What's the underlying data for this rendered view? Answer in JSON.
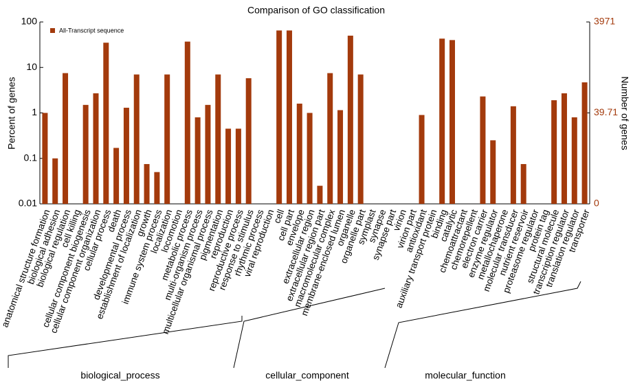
{
  "chart_data": {
    "type": "bar",
    "title": "Comparison of GO classification",
    "ylabel": "Percent of genes",
    "y2label": "Number of genes",
    "log_scale": true,
    "legend_position": "upper left",
    "series": [
      {
        "name": "All-Transcript sequence",
        "color": "#a33a0c",
        "values": [
          1.0,
          0.1,
          7.5,
          null,
          1.5,
          2.7,
          35,
          0.17,
          1.3,
          7,
          0.075,
          0.05,
          7,
          null,
          37,
          0.8,
          1.5,
          7,
          0.45,
          0.45,
          5.8,
          null,
          null,
          65,
          65,
          1.6,
          1.0,
          0.025,
          7.5,
          1.15,
          50,
          7,
          null,
          null,
          null,
          null,
          null,
          0.9,
          null,
          43,
          40,
          null,
          null,
          2.3,
          0.25,
          null,
          1.4,
          0.075,
          null,
          null,
          1.9,
          2.7,
          0.8,
          4.7
        ]
      }
    ],
    "categories": [
      "anatomical structure formation",
      "biological adhesion",
      "biological regulation",
      "cell killing",
      "cellular component biogenesis",
      "cellular component organization",
      "cellular process",
      "death",
      "developmental process",
      "establishment of localization",
      "growth",
      "immune system process",
      "localization",
      "locomotion",
      "metabolic process",
      "multi-organism process",
      "multicellular organismal process",
      "pigmentation",
      "reproduction",
      "reproductive process",
      "response to stimulus",
      "rhythmic process",
      "viral reproduction",
      "cell",
      "cell part",
      "envelope",
      "extracellular region",
      "extracellular region part",
      "macromolecular complex",
      "membrane-enclosed lumen",
      "organelle",
      "organelle part",
      "symplast",
      "synapse",
      "synapse part",
      "virion",
      "virion part",
      "antioxidant",
      "auxiliary transport protein",
      "binding",
      "catalytic",
      "chemoattractant",
      "chemorepellent",
      "electron carrier",
      "enzyme regulator",
      "metallochaperone",
      "molecular transducer",
      "nutrient reservoir",
      "proteasome regulator",
      "protein tag",
      "structural molecule",
      "transcription regulator",
      "translation regulator",
      "transporter"
    ],
    "groups": [
      "biological_process",
      "cellular_component",
      "molecular_function"
    ],
    "ylim": [
      0.01,
      100
    ],
    "yticks": [
      100,
      10,
      1,
      0.1,
      0.01
    ],
    "y2lim": [
      0.3971,
      3971
    ],
    "y2ticks": [
      3971,
      39.71,
      {
        "value": 0.3971,
        "label": "0"
      }
    ],
    "y2color": "#a33a0c"
  }
}
